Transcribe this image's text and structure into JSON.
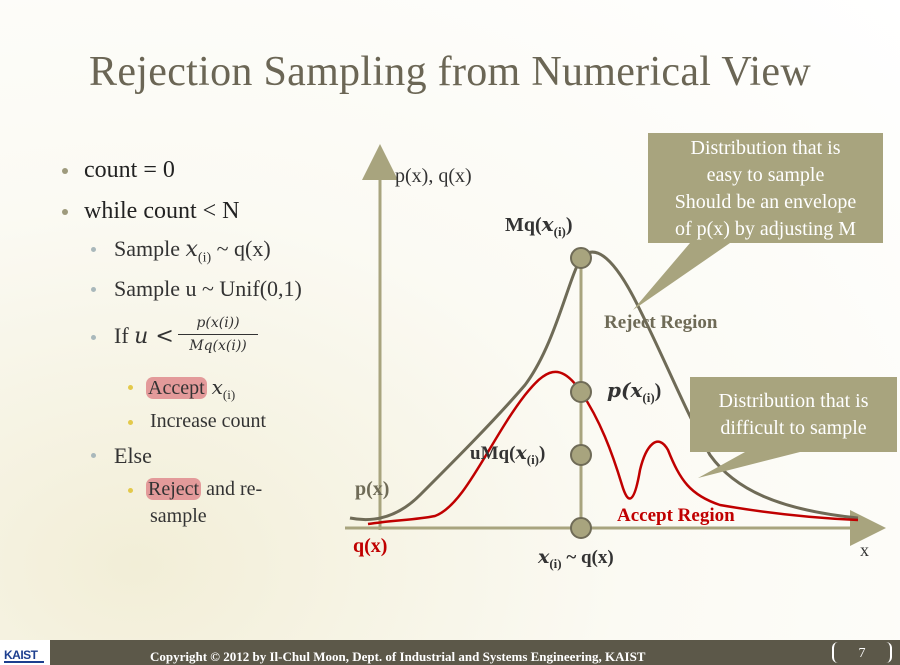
{
  "title": "Rejection Sampling from Numerical View",
  "bullets": {
    "count_init": "count = 0",
    "while": "while count < N",
    "sample_x_prefix": "Sample",
    "sample_x_math": "x",
    "sample_x_sub": "(i)",
    "sample_x_suffix": " ~ q(x)",
    "sample_u": "Sample u ~ Unif(0,1)",
    "if_prefix": "If",
    "if_u": "u <",
    "frac_num": "p(x(i))",
    "frac_den": "Mq(x(i))",
    "accept_label": "Accept",
    "accept_var": "x",
    "accept_sub": "(i)",
    "increase": "Increase count",
    "else": "Else",
    "reject_label": "Reject",
    "reject_rest_1": " and re-",
    "reject_rest_2": "sample"
  },
  "diagram": {
    "y_axis_label": "p(x), q(x)",
    "x_axis_label": "x",
    "label_mq_peak": "Mq(",
    "label_mq_peak_var": "x",
    "label_mq_peak_sub": "(i)",
    "label_px_point": "p(",
    "label_umq_point": "uMq(",
    "label_xi": "x",
    "label_xi_sub": "(i)",
    "label_xi_suffix": " ~ q(x)",
    "curve_label_px": "p(x)",
    "curve_label_qx": "q(x)",
    "reject_region": "Reject Region",
    "accept_region": "Accept Region",
    "close_paren": ")",
    "callout_q": [
      "Distribution that is",
      "easy to sample",
      "Should be an envelope",
      "of p(x) by adjusting M"
    ],
    "callout_p": [
      "Distribution that is",
      "difficult to sample"
    ]
  },
  "footer": {
    "logo": "KAIST",
    "copyright": "Copyright © 2012 by Il-Chul Moon, Dept. of Industrial and Systems Engineering, KAIST",
    "page": "7"
  },
  "colors": {
    "title": "#6b6655",
    "q_curve": "#6f6b57",
    "p_curve": "#c00000",
    "callout": "#a8a47e",
    "axis": "#a8a47e",
    "footer": "#5c5849",
    "highlight": "#e39a9a"
  }
}
